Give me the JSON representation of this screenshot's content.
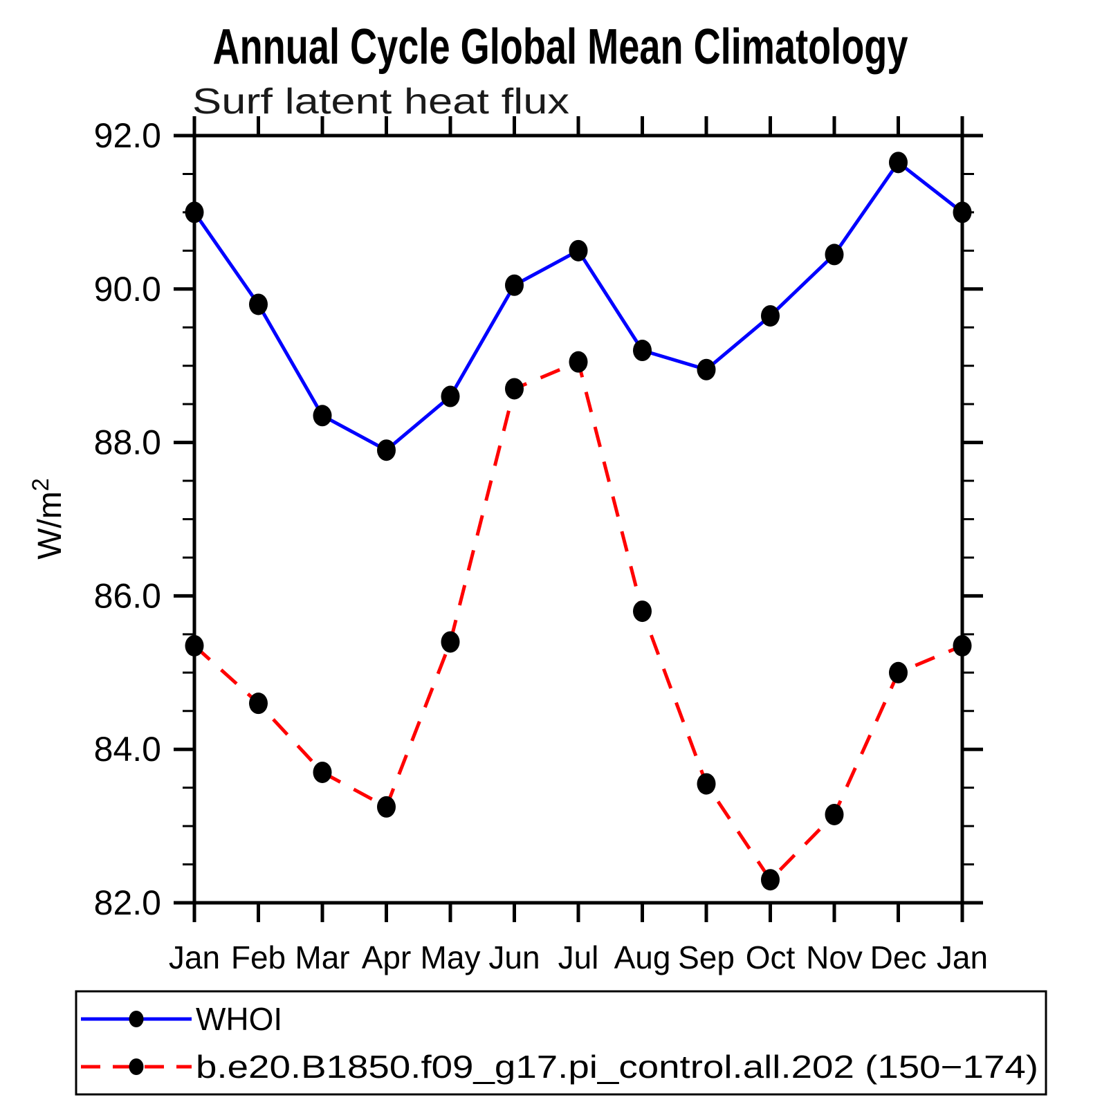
{
  "chart_data": {
    "type": "line",
    "title": "Annual Cycle Global Mean Climatology",
    "subtitle": "Surf latent heat flux",
    "ylabel": "W/m²",
    "xlabel": "",
    "ylim": [
      82.0,
      92.0
    ],
    "y_major_step": 2.0,
    "y_minor_step": 0.5,
    "y_tick_labels": [
      "92.0",
      "90.0",
      "88.0",
      "86.0",
      "84.0",
      "82.0"
    ],
    "categories": [
      "Jan",
      "Feb",
      "Mar",
      "Apr",
      "May",
      "Jun",
      "Jul",
      "Aug",
      "Sep",
      "Oct",
      "Nov",
      "Dec",
      "Jan"
    ],
    "grid": false,
    "legend_position": "bottom-left-box",
    "marker": "filled-black-dot",
    "marker_color": "#000000",
    "axis_color": "#000000",
    "series": [
      {
        "name": "WHOI",
        "color": "#0000ff",
        "style": "solid",
        "values": [
          91.0,
          89.8,
          88.35,
          87.9,
          88.6,
          90.05,
          90.5,
          89.2,
          88.95,
          89.65,
          90.45,
          91.65,
          91.0
        ]
      },
      {
        "name": "b.e20.B1850.f09_g17.pi_control.all.202 (150−174)",
        "color": "#ff0000",
        "style": "dashed",
        "values": [
          85.35,
          84.6,
          83.7,
          83.25,
          85.4,
          88.7,
          89.05,
          85.8,
          83.55,
          82.3,
          83.15,
          85.0,
          85.35
        ]
      }
    ]
  }
}
